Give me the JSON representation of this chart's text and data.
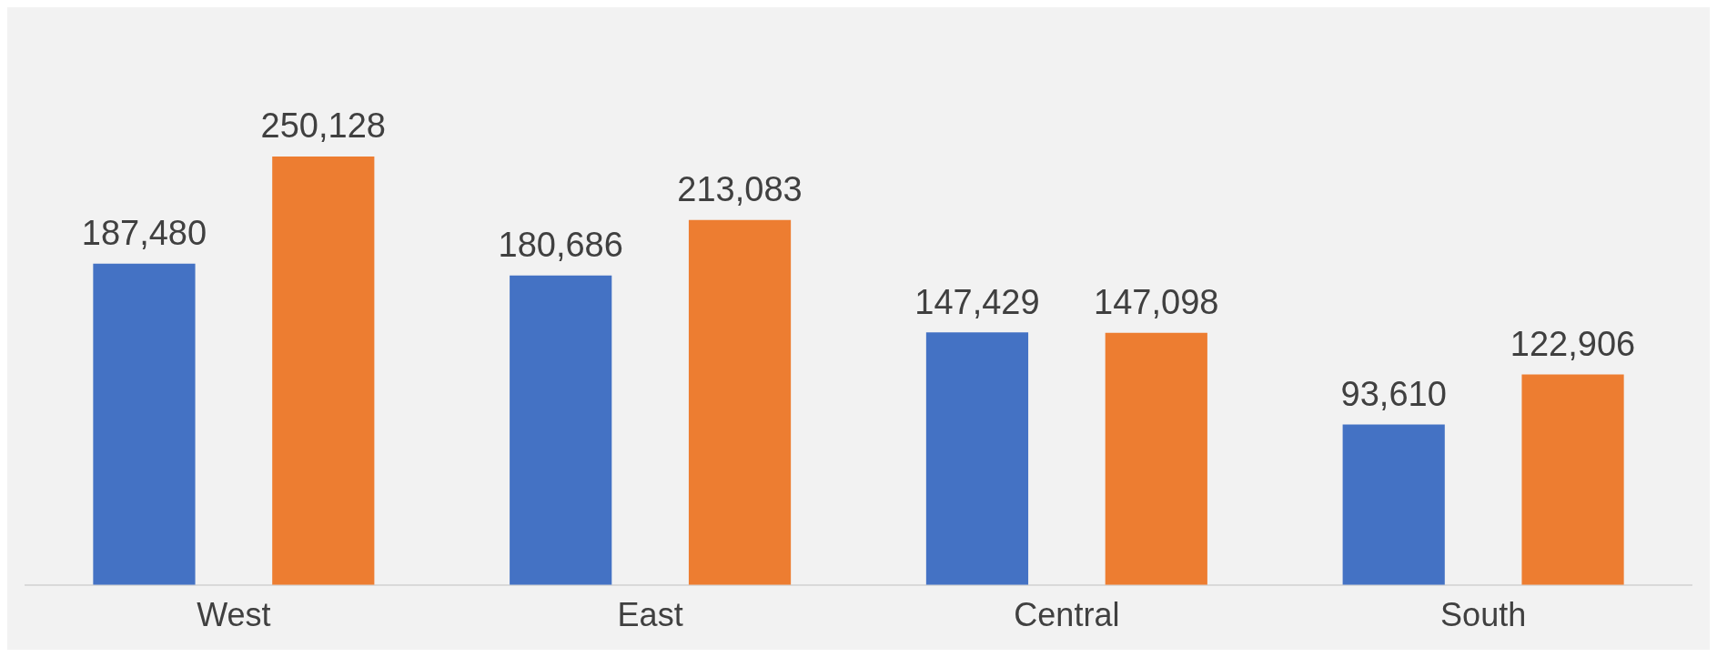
{
  "chart_data": {
    "type": "bar",
    "categories": [
      "West",
      "East",
      "Central",
      "South"
    ],
    "series": [
      {
        "color": "#4472c4",
        "values": [
          187480,
          180686,
          147429,
          93610
        ],
        "value_labels": [
          "187,480",
          "180,686",
          "147,429",
          "93,610"
        ]
      },
      {
        "color": "#ed7d31",
        "values": [
          250128,
          213083,
          147098,
          122906
        ],
        "value_labels": [
          "250,128",
          "213,083",
          "147,098",
          "122,906"
        ]
      }
    ],
    "grid": false,
    "legend": false
  }
}
